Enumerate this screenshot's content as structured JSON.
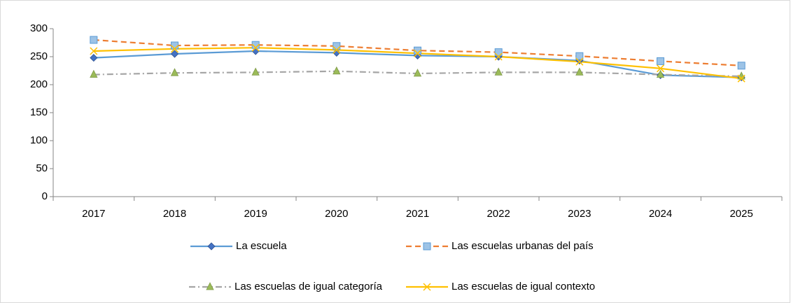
{
  "chart_data": {
    "type": "line",
    "categories": [
      "2017",
      "2018",
      "2019",
      "2020",
      "2021",
      "2022",
      "2023",
      "2024",
      "2025"
    ],
    "series": [
      {
        "name": "La escuela",
        "color": "#5b9bd5",
        "marker": "diamond",
        "dash": "solid",
        "values": [
          248,
          255,
          260,
          257,
          252,
          250,
          243,
          217,
          213
        ]
      },
      {
        "name": "Las escuelas urbanas del país",
        "color": "#ed7d31",
        "marker": "square",
        "dash": "dashed",
        "values": [
          280,
          270,
          271,
          269,
          261,
          258,
          251,
          242,
          234
        ]
      },
      {
        "name": "Las escuelas de igual categoría",
        "color": "#a5a5a5",
        "marker": "triangle",
        "dash": "dashdot",
        "values": [
          218,
          221,
          222,
          224,
          220,
          222,
          222,
          218,
          215
        ]
      },
      {
        "name": "Las escuelas de igual contexto",
        "color": "#ffc000",
        "marker": "x",
        "dash": "solid",
        "values": [
          260,
          264,
          266,
          262,
          256,
          250,
          241,
          229,
          211
        ]
      }
    ],
    "ylim": [
      0,
      300
    ],
    "yticks": [
      0,
      50,
      100,
      150,
      200,
      250,
      300
    ],
    "grid": false,
    "legend": "bottom"
  }
}
